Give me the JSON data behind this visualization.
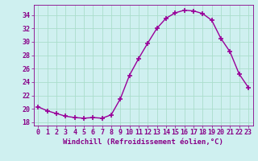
{
  "x": [
    0,
    1,
    2,
    3,
    4,
    5,
    6,
    7,
    8,
    9,
    10,
    11,
    12,
    13,
    14,
    15,
    16,
    17,
    18,
    19,
    20,
    21,
    22,
    23
  ],
  "y": [
    20.3,
    19.7,
    19.3,
    18.9,
    18.7,
    18.6,
    18.7,
    18.6,
    19.1,
    21.5,
    25.0,
    27.5,
    29.8,
    32.0,
    33.5,
    34.3,
    34.7,
    34.6,
    34.2,
    33.2,
    30.5,
    28.5,
    25.2,
    23.2
  ],
  "line_color": "#990099",
  "marker": "+",
  "markersize": 4,
  "markeredgewidth": 1.2,
  "linewidth": 1.0,
  "bg_color": "#cff0f0",
  "grid_color": "#aaddcc",
  "xlabel": "Windchill (Refroidissement éolien,°C)",
  "xlabel_color": "#880088",
  "tick_color": "#880088",
  "axis_color": "#880088",
  "ylim": [
    17.5,
    35.5
  ],
  "xlim": [
    -0.5,
    23.5
  ],
  "yticks": [
    18,
    20,
    22,
    24,
    26,
    28,
    30,
    32,
    34
  ],
  "xticks": [
    0,
    1,
    2,
    3,
    4,
    5,
    6,
    7,
    8,
    9,
    10,
    11,
    12,
    13,
    14,
    15,
    16,
    17,
    18,
    19,
    20,
    21,
    22,
    23
  ],
  "xlabel_fontsize": 6.5,
  "tick_fontsize": 6.0
}
